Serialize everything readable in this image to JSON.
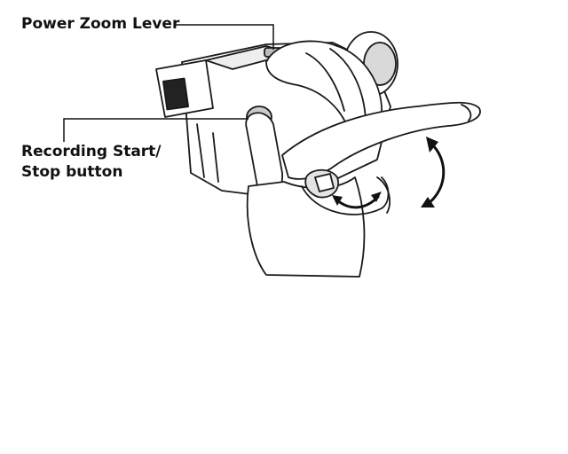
{
  "labels": {
    "power_zoom_lever": "Power Zoom Lever",
    "recording_line1": "Recording Start/",
    "recording_line2": "Stop button"
  }
}
